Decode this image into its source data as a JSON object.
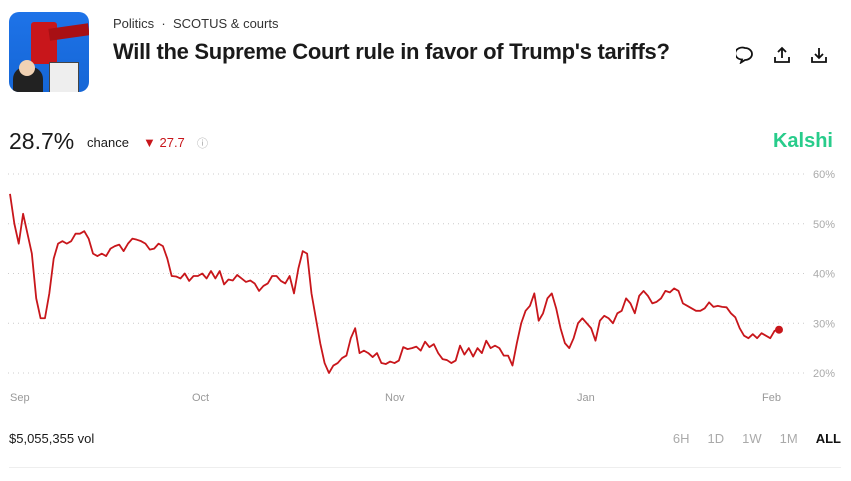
{
  "header": {
    "category": "Politics",
    "separator": "·",
    "subcategory": "SCOTUS & courts",
    "title": "Will the Supreme Court rule in favor of Trump's tariffs?",
    "icons": [
      "comment-icon",
      "share-icon",
      "download-icon"
    ]
  },
  "summary": {
    "probability": "28.7%",
    "chance_label": "chance",
    "delta": "▼ 27.7",
    "info_icon": "ⓘ",
    "brand": "Kalshi"
  },
  "colors": {
    "line": "#c8161b",
    "brand": "#28cc8b"
  },
  "chart_data": {
    "type": "line",
    "ylim": [
      20,
      60
    ],
    "y_ticks": [
      "60%",
      "50%",
      "40%",
      "30%",
      "20%"
    ],
    "x_ticks": [
      "Sep",
      "Oct",
      "Nov",
      "Jan",
      "Feb"
    ],
    "grid": true,
    "values": [
      56,
      50,
      46,
      52,
      48,
      44,
      35,
      31,
      31,
      36,
      43,
      46,
      46.5,
      46,
      46.5,
      48,
      48,
      48.5,
      47,
      44,
      43.5,
      44,
      43.5,
      45,
      45.5,
      45.8,
      44.5,
      46,
      47,
      46.8,
      46.5,
      46,
      44.8,
      45,
      46,
      45.5,
      43,
      39.5,
      39.4,
      39,
      40,
      38.5,
      39.5,
      39.5,
      40,
      39,
      40.5,
      39,
      40.5,
      37.8,
      38.8,
      38.6,
      39.7,
      39,
      38.3,
      38.6,
      38,
      36.5,
      37.5,
      38,
      39.5,
      39.5,
      38.5,
      38,
      39.5,
      36,
      41,
      44.5,
      44,
      36,
      31,
      26,
      22,
      20,
      21.5,
      22,
      23,
      23.5,
      27,
      29,
      24,
      24.5,
      24,
      23.2,
      24,
      22,
      21.8,
      22.3,
      22,
      22.5,
      25.2,
      24.8,
      25,
      25.3,
      24.5,
      26.3,
      25.2,
      25.8,
      24,
      22.8,
      22.6,
      22,
      22.5,
      25.5,
      23.7,
      25,
      23.3,
      25,
      24,
      26.5,
      25,
      25.5,
      25,
      23.5,
      23.5,
      21.5,
      26,
      30,
      32.5,
      33.5,
      36,
      30.5,
      32,
      35,
      36,
      33,
      29,
      26,
      25,
      27,
      30,
      31,
      30,
      29,
      26.5,
      30.5,
      31.5,
      31,
      30,
      32,
      32.5,
      35,
      34,
      32,
      35.5,
      36.5,
      35.5,
      34,
      34.3,
      35,
      36.5,
      36.2,
      37,
      36.5,
      34,
      33.5,
      33,
      32.5,
      32.5,
      33,
      34.2,
      33.3,
      33.5,
      33.3,
      33.2,
      32,
      31.2,
      29,
      27.5,
      27,
      27.8,
      27,
      28,
      27.5,
      27,
      28.5,
      28.7
    ]
  },
  "footer": {
    "volume": "$5,055,355 vol",
    "ranges": [
      "6H",
      "1D",
      "1W",
      "1M",
      "ALL"
    ],
    "selected_range": "ALL"
  }
}
